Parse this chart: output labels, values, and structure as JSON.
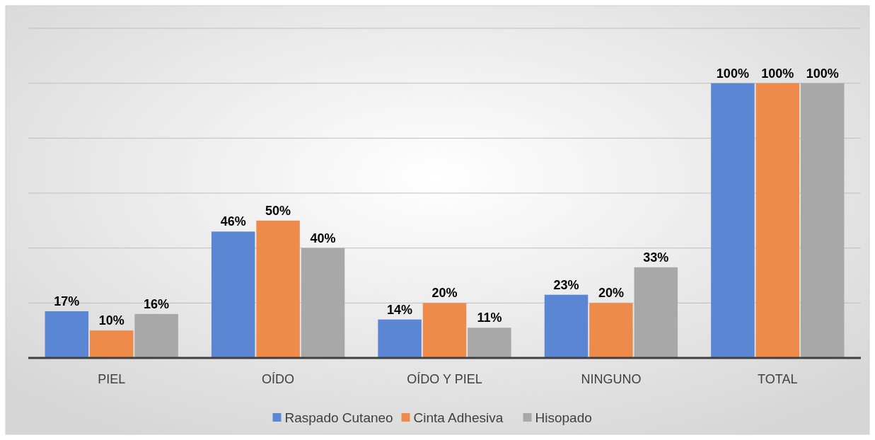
{
  "chart_data": {
    "type": "bar",
    "categories": [
      "PIEL",
      "OÍDO",
      "OÍDO Y PIEL",
      "NINGUNO",
      "TOTAL"
    ],
    "series": [
      {
        "name": "Raspado Cutaneo",
        "color": "#5b86d4",
        "values": [
          17,
          46,
          14,
          23,
          100
        ],
        "value_labels": [
          "17%",
          "46%",
          "14%",
          "23%",
          "100%"
        ]
      },
      {
        "name": "Cinta Adhesiva",
        "color": "#ee8b4b",
        "values": [
          10,
          50,
          20,
          20,
          100
        ],
        "value_labels": [
          "10%",
          "50%",
          "20%",
          "20%",
          "100%"
        ]
      },
      {
        "name": "Hisopado",
        "color": "#a8a8a8",
        "values": [
          16,
          40,
          11,
          33,
          100
        ],
        "value_labels": [
          "16%",
          "40%",
          "11%",
          "33%",
          "100%"
        ]
      }
    ],
    "tick_labels": "x",
    "grid": "y",
    "legend": "bottom"
  }
}
